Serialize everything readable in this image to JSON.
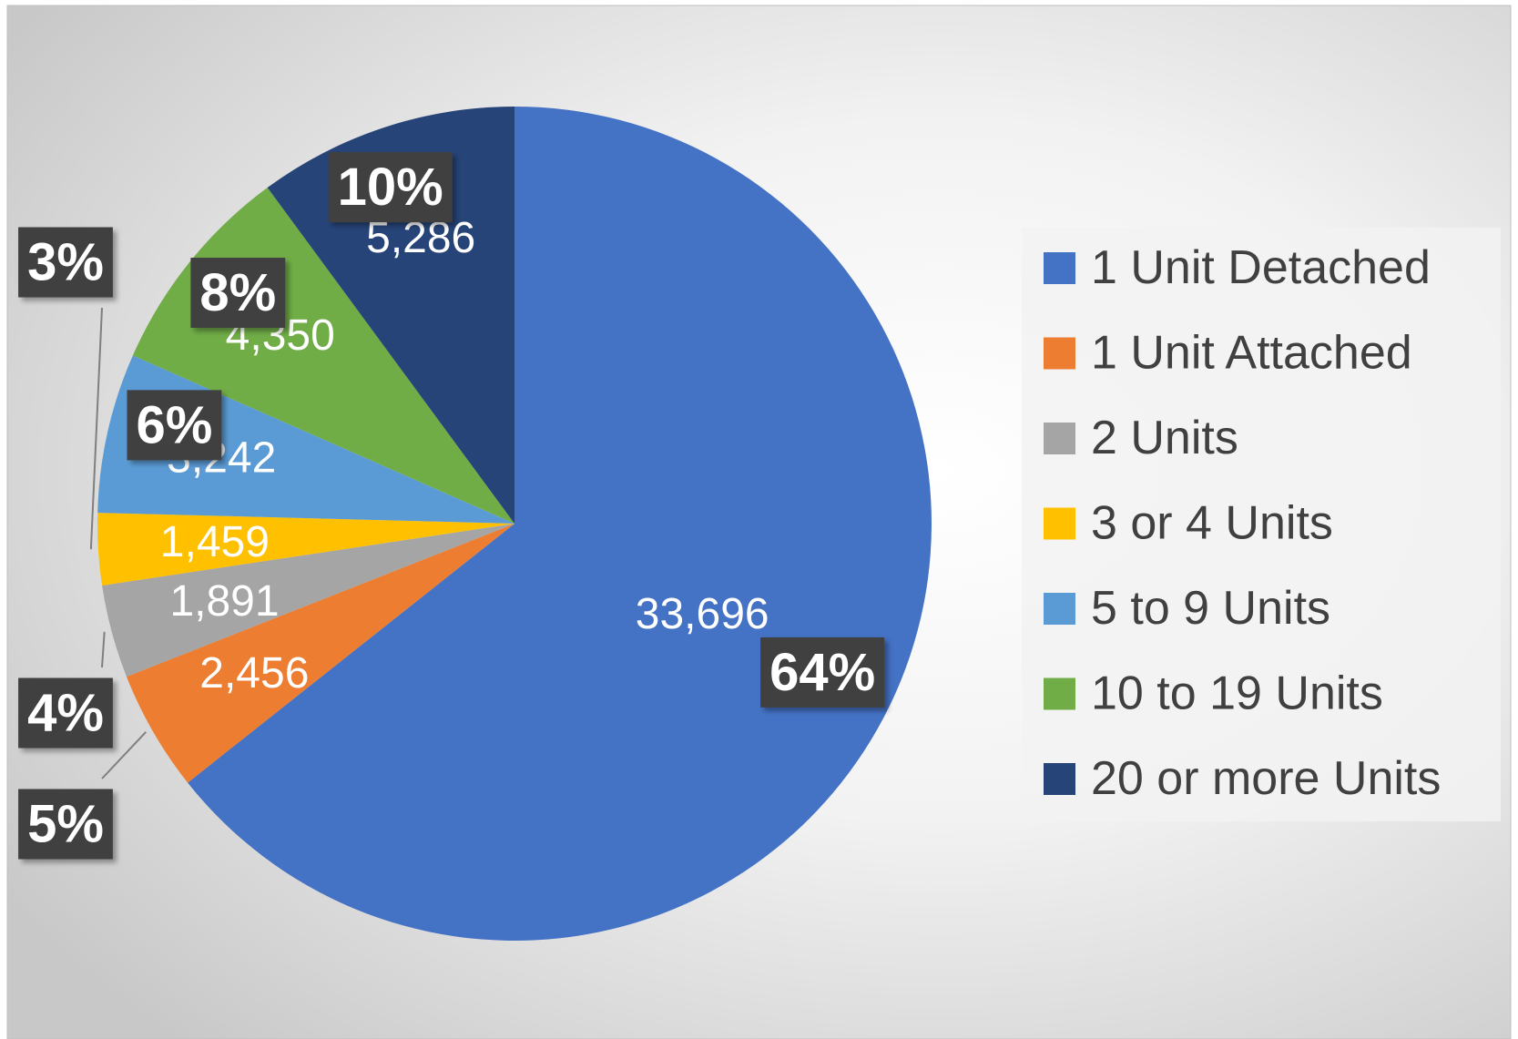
{
  "chart_data": {
    "type": "pie",
    "categories": [
      "1 Unit Detached",
      "1 Unit Attached",
      "2 Units",
      "3 or 4 Units",
      "5 to 9 Units",
      "10 to 19 Units",
      "20 or more Units"
    ],
    "values": [
      33696,
      2456,
      1891,
      1459,
      3242,
      4350,
      5286
    ],
    "value_labels": [
      "33,696",
      "2,456",
      "1,891",
      "1,459",
      "3,242",
      "4,350",
      "5,286"
    ],
    "percent_labels": [
      "64%",
      "5%",
      "4%",
      "3%",
      "6%",
      "8%",
      "10%"
    ],
    "colors": [
      "#4472c4",
      "#ed7d31",
      "#a5a5a5",
      "#ffc000",
      "#5b9bd5",
      "#70ad47",
      "#264478"
    ],
    "legend": "right"
  }
}
